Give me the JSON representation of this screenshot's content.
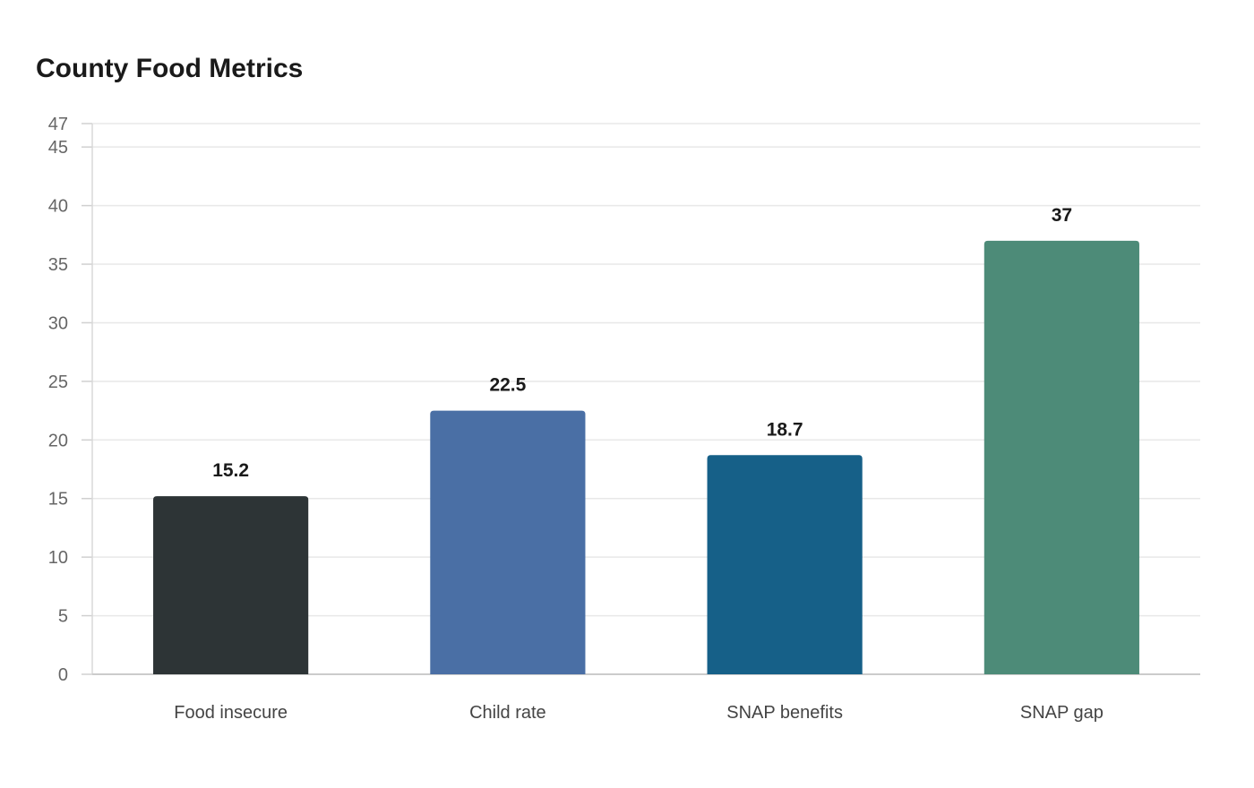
{
  "chart_data": {
    "type": "bar",
    "title": "County Food Metrics",
    "xlabel": "",
    "ylabel": "",
    "categories": [
      "Food insecure",
      "Child rate",
      "SNAP benefits",
      "SNAP gap"
    ],
    "values": [
      15.2,
      22.5,
      18.7,
      37
    ],
    "value_labels": [
      "15.2",
      "22.5",
      "18.7",
      "37"
    ],
    "colors": [
      "#2d3436",
      "#4a6fa5",
      "#166088",
      "#4d8b78"
    ],
    "ylim": [
      0,
      47
    ],
    "yticks": [
      0,
      5,
      10,
      15,
      20,
      25,
      30,
      35,
      40,
      45,
      47
    ],
    "grid": true,
    "legend": "none"
  }
}
